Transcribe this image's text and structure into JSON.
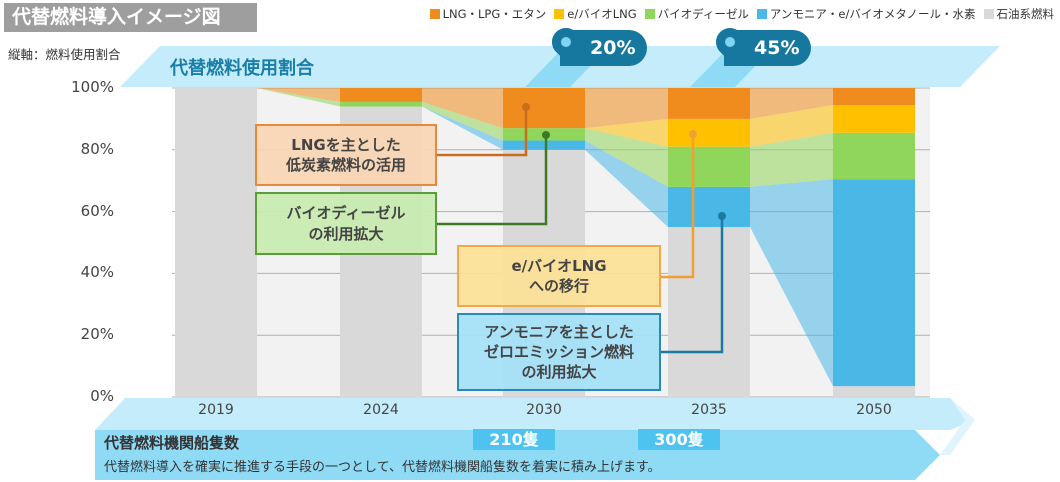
{
  "title": "代替燃料導入イメージ図",
  "axis_note": "縦軸：燃料使用割合",
  "banner_title": "代替燃料使用割合",
  "pins": [
    {
      "year": "2030",
      "label": "20%"
    },
    {
      "year": "2035",
      "label": "45%"
    }
  ],
  "legend": [
    {
      "label": "LNG・LPG・エタン",
      "color": "#f08c1e"
    },
    {
      "label": "e/バイオLNG",
      "color": "#ffc000"
    },
    {
      "label": "バイオディーゼル",
      "color": "#8fd65a"
    },
    {
      "label": "アンモニア・e/バイオメタノール・水素",
      "color": "#4ab8e6"
    },
    {
      "label": "石油系燃料",
      "color": "#d9d9d9"
    }
  ],
  "callouts": [
    {
      "lines": [
        "LNGを主とした",
        "低炭素燃料の活用"
      ]
    },
    {
      "lines": [
        "バイオディーゼル",
        "の利用拡大"
      ]
    },
    {
      "lines": [
        "e/バイオLNG",
        "への移行"
      ]
    },
    {
      "lines": [
        "アンモニアを主とした",
        "ゼロエミッション燃料",
        "の利用拡大"
      ]
    }
  ],
  "bottom": {
    "title": "代替燃料機関船隻数",
    "text": "代替燃料導入を確実に推進する手段の一つとして、代替燃料機関船隻数を着実に積み上げます。",
    "ships": [
      {
        "year": "2030",
        "label": "210隻"
      },
      {
        "year": "2035",
        "label": "300隻"
      }
    ]
  },
  "chart_data": {
    "type": "bar",
    "stacked": true,
    "categories": [
      "2019",
      "2024",
      "2030",
      "2035",
      "2050"
    ],
    "ylim": [
      0,
      100
    ],
    "yticks": [
      "0%",
      "20%",
      "40%",
      "60%",
      "80%",
      "100%"
    ],
    "ylabel": "燃料使用割合",
    "grid": true,
    "legend_position": "top-right",
    "series": [
      {
        "name": "石油系燃料",
        "color": "#d9d9d9",
        "values": [
          100,
          94,
          80,
          55,
          3.5
        ]
      },
      {
        "name": "アンモニア・e/バイオメタノール・水素",
        "color": "#4ab8e6",
        "values": [
          0,
          0,
          3,
          13,
          67
        ]
      },
      {
        "name": "バイオディーゼル",
        "color": "#8fd65a",
        "values": [
          0,
          1.5,
          4,
          13,
          15
        ]
      },
      {
        "name": "e/バイオLNG",
        "color": "#ffc000",
        "values": [
          0,
          0,
          0,
          9,
          9
        ]
      },
      {
        "name": "LNG・LPG・エタン",
        "color": "#f08c1e",
        "values": [
          0,
          4.5,
          13,
          10,
          5.5
        ]
      }
    ]
  }
}
